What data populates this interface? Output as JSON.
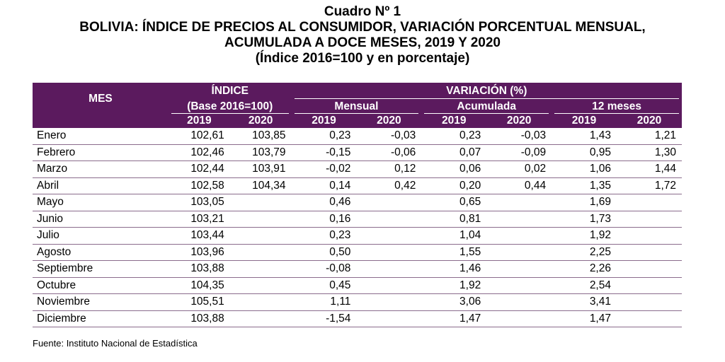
{
  "title": {
    "line1": "Cuadro Nº 1",
    "line2": "BOLIVIA: ÍNDICE DE PRECIOS AL CONSUMIDOR, VARIACIÓN PORCENTUAL MENSUAL,",
    "line3": "ACUMULADA A DOCE MESES, 2019 Y 2020",
    "line4": "(Índice 2016=100 y en porcentaje)"
  },
  "header": {
    "mes": "MES",
    "indice": "ÍNDICE",
    "base": "(Base 2016=100)",
    "variacion": "VARIACIÓN (%)",
    "mensual": "Mensual",
    "acumulada": "Acumulada",
    "doce": "12 meses",
    "years": [
      "2019",
      "2020",
      "2019",
      "2020",
      "2019",
      "2020",
      "2019",
      "2020"
    ]
  },
  "rows": [
    {
      "mes": "Enero",
      "v": [
        "102,61",
        "103,85",
        "0,23",
        "-0,03",
        "0,23",
        "-0,03",
        "1,43",
        "1,21"
      ]
    },
    {
      "mes": "Febrero",
      "v": [
        "102,46",
        "103,79",
        "-0,15",
        "-0,06",
        "0,07",
        "-0,09",
        "0,95",
        "1,30"
      ]
    },
    {
      "mes": "Marzo",
      "v": [
        "102,44",
        "103,91",
        "-0,02",
        "0,12",
        "0,06",
        "0,02",
        "1,06",
        "1,44"
      ]
    },
    {
      "mes": "Abril",
      "v": [
        "102,58",
        "104,34",
        "0,14",
        "0,42",
        "0,20",
        "0,44",
        "1,35",
        "1,72"
      ]
    },
    {
      "mes": "Mayo",
      "v": [
        "103,05",
        "",
        "0,46",
        "",
        "0,65",
        "",
        "1,69",
        ""
      ]
    },
    {
      "mes": "Junio",
      "v": [
        "103,21",
        "",
        "0,16",
        "",
        "0,81",
        "",
        "1,73",
        ""
      ]
    },
    {
      "mes": "Julio",
      "v": [
        "103,44",
        "",
        "0,23",
        "",
        "1,04",
        "",
        "1,92",
        ""
      ]
    },
    {
      "mes": "Agosto",
      "v": [
        "103,96",
        "",
        "0,50",
        "",
        "1,55",
        "",
        "2,25",
        ""
      ]
    },
    {
      "mes": "Septiembre",
      "v": [
        "103,88",
        "",
        "-0,08",
        "",
        "1,46",
        "",
        "2,26",
        ""
      ]
    },
    {
      "mes": "Octubre",
      "v": [
        "104,35",
        "",
        "0,45",
        "",
        "1,92",
        "",
        "2,54",
        ""
      ]
    },
    {
      "mes": "Noviembre",
      "v": [
        "105,51",
        "",
        "1,11",
        "",
        "3,06",
        "",
        "3,41",
        ""
      ]
    },
    {
      "mes": "Diciembre",
      "v": [
        "103,88",
        "",
        "-1,54",
        "",
        "1,47",
        "",
        "1,47",
        ""
      ]
    }
  ],
  "source": "Fuente: Instituto Nacional de Estadística",
  "colors": {
    "header_bg": "#5b1a5e",
    "header_text": "#ffffff"
  }
}
